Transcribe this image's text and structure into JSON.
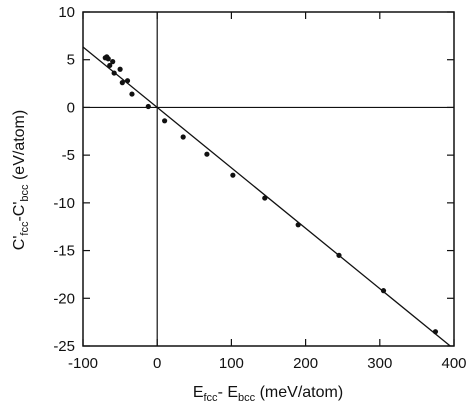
{
  "chart_data": {
    "type": "scatter",
    "xlabel": {
      "parts": [
        "E",
        "fcc",
        "- E",
        "bcc",
        " (meV/atom)"
      ]
    },
    "ylabel": {
      "parts": [
        "C'",
        "fcc",
        "-C'",
        "bcc",
        " (eV/atom)"
      ]
    },
    "xlim": [
      -100,
      400
    ],
    "ylim": [
      -25,
      10
    ],
    "xticks": [
      -100,
      0,
      100,
      200,
      300,
      400
    ],
    "yticks": [
      10,
      5,
      0,
      -5,
      -10,
      -15,
      -20,
      -25
    ],
    "xtick_labels": [
      "-100",
      "0",
      "100",
      "200",
      "300",
      "400"
    ],
    "ytick_labels": [
      "10",
      "5",
      "0",
      "-5",
      "-10",
      "-15",
      "-20",
      "-25"
    ],
    "reference_lines": {
      "x": 0,
      "y": 0
    },
    "points": [
      {
        "x": -70,
        "y": 5.2
      },
      {
        "x": -68,
        "y": 5.3
      },
      {
        "x": -66,
        "y": 5.1
      },
      {
        "x": -64,
        "y": 4.4
      },
      {
        "x": -60,
        "y": 4.8
      },
      {
        "x": -58,
        "y": 3.6
      },
      {
        "x": -50,
        "y": 4.0
      },
      {
        "x": -47,
        "y": 2.6
      },
      {
        "x": -40,
        "y": 2.8
      },
      {
        "x": -34,
        "y": 1.4
      },
      {
        "x": -12,
        "y": 0.1
      },
      {
        "x": 10,
        "y": -1.4
      },
      {
        "x": 35,
        "y": -3.1
      },
      {
        "x": 67,
        "y": -4.9
      },
      {
        "x": 102,
        "y": -7.1
      },
      {
        "x": 145,
        "y": -9.5
      },
      {
        "x": 190,
        "y": -12.3
      },
      {
        "x": 245,
        "y": -15.5
      },
      {
        "x": 305,
        "y": -19.2
      },
      {
        "x": 375,
        "y": -23.5
      }
    ],
    "fit_line": {
      "slope": -0.0633,
      "intercept": 0
    },
    "grid": false,
    "legend": "none"
  }
}
